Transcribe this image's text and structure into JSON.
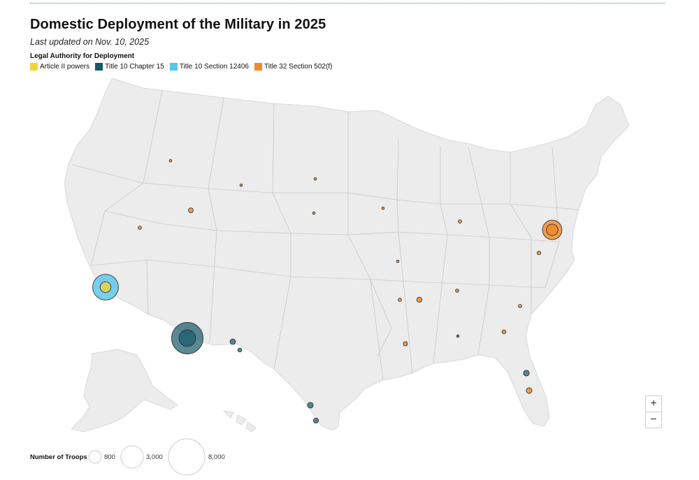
{
  "header": {
    "title": "Domestic Deployment of the Military in 2025",
    "subtitle": "Last updated on Nov. 10, 2025",
    "legend_heading": "Legal Authority for Deployment"
  },
  "legend": [
    {
      "label": "Article II powers",
      "color": "#f2d43a"
    },
    {
      "label": "Title 10 Chapter 15",
      "color": "#15586a"
    },
    {
      "label": "Title 10 Section 12406",
      "color": "#58c4ee"
    },
    {
      "label": "Title 32 Section 502(f)",
      "color": "#f08a2c"
    }
  ],
  "size_legend": {
    "label": "Number of Troops",
    "items": [
      {
        "value": 800,
        "text": "800"
      },
      {
        "value": 3000,
        "text": "3,000"
      },
      {
        "value": 8000,
        "text": "8,000"
      }
    ]
  },
  "zoom": {
    "in": "+",
    "out": "−"
  },
  "chart_data": {
    "type": "bubble-map",
    "title": "Domestic Deployment of the Military in 2025",
    "deployments": [
      {
        "location": "Washington, DC",
        "authority": "Title 32 Section 502(f)",
        "troops": 2300
      },
      {
        "location": "Washington, DC (inner)",
        "authority": "Title 32 Section 502(f)",
        "troops": 800
      },
      {
        "location": "Los Angeles, CA",
        "authority": "Title 10 Section 12406",
        "troops": 4000
      },
      {
        "location": "Los Angeles, CA (inner)",
        "authority": "Article II powers",
        "troops": 700
      },
      {
        "location": "Southern Arizona border",
        "authority": "Title 10 Chapter 15",
        "troops": 6000
      },
      {
        "location": "Southern Arizona border (inner)",
        "authority": "Title 10 Chapter 15",
        "troops": 1700
      },
      {
        "location": "El Paso, TX",
        "authority": "Title 10 Chapter 15",
        "troops": 180
      },
      {
        "location": "West Texas border",
        "authority": "Title 10 Chapter 15",
        "troops": 90
      },
      {
        "location": "South Texas coast",
        "authority": "Title 10 Chapter 15",
        "troops": 200
      },
      {
        "location": "Brownsville, TX",
        "authority": "Title 10 Chapter 15",
        "troops": 150
      },
      {
        "location": "Florida east coast",
        "authority": "Title 10 Chapter 15",
        "troops": 200
      },
      {
        "location": "South Florida",
        "authority": "Title 32 Section 502(f)",
        "troops": 190
      },
      {
        "location": "Idaho",
        "authority": "Title 32 Section 502(f)",
        "troops": 40
      },
      {
        "location": "Nevada",
        "authority": "Title 32 Section 502(f)",
        "troops": 60
      },
      {
        "location": "Utah",
        "authority": "Title 32 Section 502(f)",
        "troops": 140
      },
      {
        "location": "Wyoming",
        "authority": "Title 32 Section 502(f)",
        "troops": 40
      },
      {
        "location": "South Dakota",
        "authority": "Title 32 Section 502(f)",
        "troops": 20
      },
      {
        "location": "Nebraska",
        "authority": "Title 32 Section 502(f)",
        "troops": 40
      },
      {
        "location": "Iowa",
        "authority": "Title 32 Section 502(f)",
        "troops": 40
      },
      {
        "location": "Missouri",
        "authority": "Title 32 Section 502(f)",
        "troops": 40
      },
      {
        "location": "Indiana",
        "authority": "Title 32 Section 502(f)",
        "troops": 70
      },
      {
        "location": "Virginia",
        "authority": "Title 32 Section 502(f)",
        "troops": 80
      },
      {
        "location": "Tennessee",
        "authority": "Title 32 Section 502(f)",
        "troops": 60
      },
      {
        "location": "Memphis, TN",
        "authority": "Title 32 Section 502(f)",
        "troops": 160
      },
      {
        "location": "Arkansas",
        "authority": "Title 32 Section 502(f)",
        "troops": 60
      },
      {
        "location": "South Carolina",
        "authority": "Title 32 Section 502(f)",
        "troops": 60
      },
      {
        "location": "Georgia",
        "authority": "Title 32 Section 502(f)",
        "troops": 90
      },
      {
        "location": "Louisiana",
        "authority": "Title 32 Section 502(f)",
        "troops": 110
      },
      {
        "location": "Alabama",
        "authority": "Title 10 Chapter 15",
        "troops": 15
      }
    ]
  }
}
